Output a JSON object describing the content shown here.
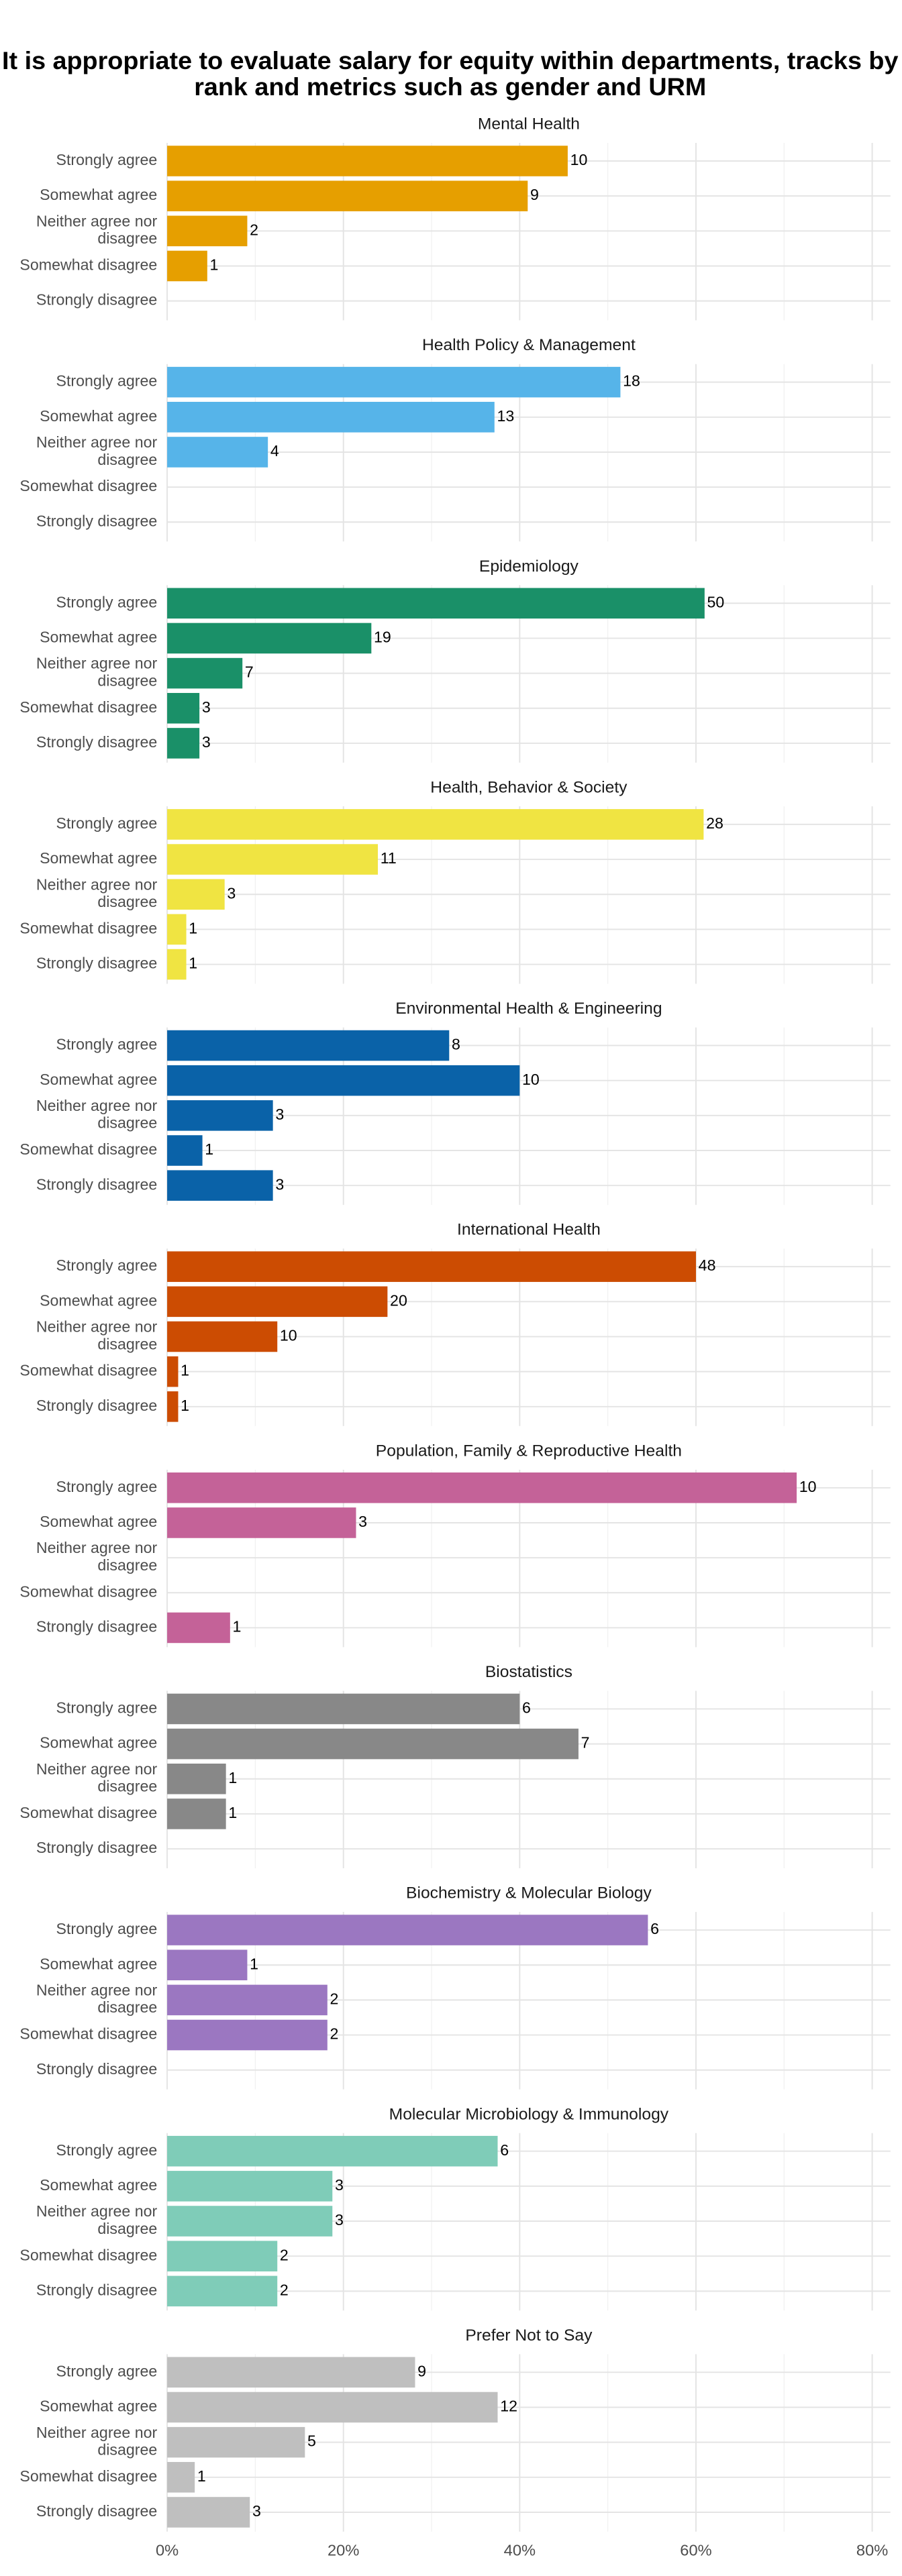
{
  "chart_data": {
    "type": "bar",
    "title": "It is appropriate to evaluate salary for equity within departments, tracks by rank and metrics such as gender and URM",
    "categories": [
      "Strongly agree",
      "Somewhat agree",
      "Neither agree nor disagree",
      "Somewhat disagree",
      "Strongly disagree"
    ],
    "xlim": [
      0,
      82
    ],
    "xticks": [
      {
        "value": 0,
        "label": "0%"
      },
      {
        "value": 20,
        "label": "20%"
      },
      {
        "value": 40,
        "label": "40%"
      },
      {
        "value": 60,
        "label": "60%"
      },
      {
        "value": 80,
        "label": "80%"
      }
    ],
    "grid": true,
    "panels": [
      {
        "title": "Mental Health",
        "color": "#e69f00",
        "values": [
          45.45,
          40.91,
          9.09,
          4.55,
          null
        ],
        "counts": [
          10,
          9,
          2,
          1,
          null
        ]
      },
      {
        "title": "Health Policy & Management",
        "color": "#56b4e9",
        "values": [
          51.43,
          37.14,
          11.43,
          null,
          null
        ],
        "counts": [
          18,
          13,
          4,
          null,
          null
        ]
      },
      {
        "title": "Epidemiology",
        "color": "#1a9068",
        "values": [
          60.98,
          23.17,
          8.54,
          3.66,
          3.66
        ],
        "counts": [
          50,
          19,
          7,
          3,
          3
        ]
      },
      {
        "title": "Health, Behavior & Society",
        "color": "#f0e442",
        "values": [
          60.87,
          23.91,
          6.52,
          2.17,
          2.17
        ],
        "counts": [
          28,
          11,
          3,
          1,
          1
        ]
      },
      {
        "title": "Environmental Health & Engineering",
        "color": "#0a62a8",
        "values": [
          32,
          40,
          12,
          4,
          12
        ],
        "counts": [
          8,
          10,
          3,
          1,
          3
        ]
      },
      {
        "title": "International Health",
        "color": "#cc4c02",
        "values": [
          60,
          25,
          12.5,
          1.25,
          1.25
        ],
        "counts": [
          48,
          20,
          10,
          1,
          1
        ]
      },
      {
        "title": "Population, Family & Reproductive Health",
        "color": "#c46298",
        "values": [
          71.43,
          21.43,
          null,
          null,
          7.14
        ],
        "counts": [
          10,
          3,
          null,
          null,
          1
        ]
      },
      {
        "title": "Biostatistics",
        "color": "#888888",
        "values": [
          40,
          46.67,
          6.67,
          6.67,
          null
        ],
        "counts": [
          6,
          7,
          1,
          1,
          null
        ]
      },
      {
        "title": "Biochemistry & Molecular Biology",
        "color": "#9b77c1",
        "values": [
          54.55,
          9.09,
          18.18,
          18.18,
          null
        ],
        "counts": [
          6,
          1,
          2,
          2,
          null
        ]
      },
      {
        "title": "Molecular Microbiology & Immunology",
        "color": "#7fccb8",
        "values": [
          37.5,
          18.75,
          18.75,
          12.5,
          12.5
        ],
        "counts": [
          6,
          3,
          3,
          2,
          2
        ]
      },
      {
        "title": "Prefer Not to Say",
        "color": "#bfbfbf",
        "values": [
          28.13,
          37.5,
          15.63,
          3.13,
          9.38
        ],
        "counts": [
          9,
          12,
          5,
          1,
          3
        ]
      }
    ]
  }
}
